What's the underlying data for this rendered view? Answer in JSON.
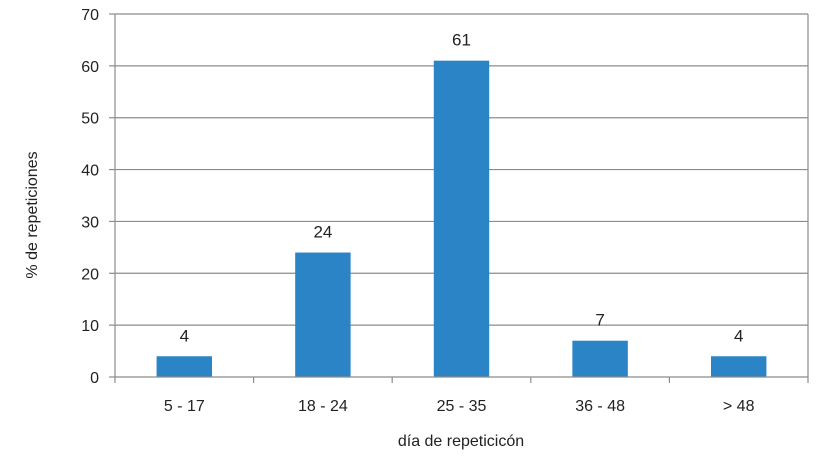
{
  "chart_data": {
    "type": "bar",
    "categories": [
      "5 - 17",
      "18 - 24",
      "25 - 35",
      "36 - 48",
      "> 48"
    ],
    "values": [
      4,
      24,
      61,
      7,
      4
    ],
    "data_labels": [
      "4",
      "24",
      "61",
      "7",
      "4"
    ],
    "xlabel": "día de repeticicón",
    "ylabel": "% de repeticiones",
    "ylim": [
      0,
      70
    ],
    "yticks": [
      0,
      10,
      20,
      30,
      40,
      50,
      60,
      70
    ],
    "grid": "horizontal",
    "legend": "none",
    "bar_color": "#2a84c6",
    "grid_color": "#8c8c8c"
  }
}
